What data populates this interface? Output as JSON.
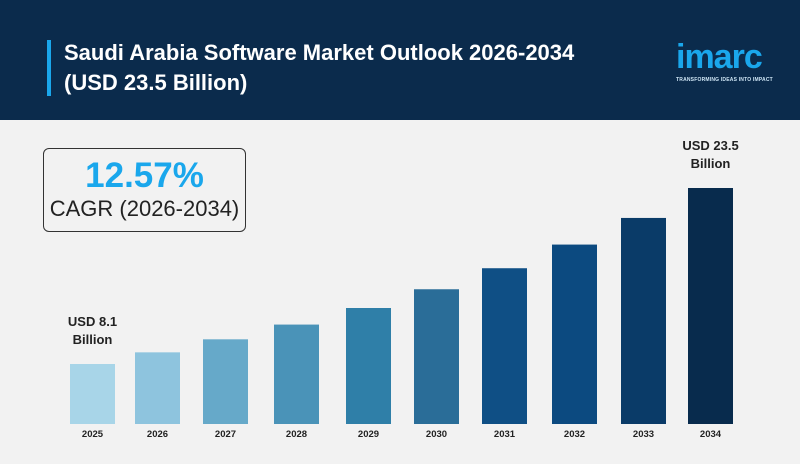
{
  "header": {
    "title_line1": "Saudi Arabia Software Market Outlook 2026-2034",
    "title_line2": "(USD 23.5 Billion)",
    "logo": "imarc",
    "tagline": "TRANSFORMING IDEAS INTO IMPACT"
  },
  "cagr": {
    "value": "12.57%",
    "label": "CAGR (2026-2034)"
  },
  "colors": {
    "header_bg": "#0b2b4c",
    "accent": "#1aa7ec",
    "bars": [
      "#a8d5e8",
      "#8ec4de",
      "#66a9c9",
      "#4a93b8",
      "#2f7fa8",
      "#2a6d98",
      "#0f4f85",
      "#0c4a80",
      "#0a3b68",
      "#082b4d"
    ]
  },
  "chart_data": {
    "type": "bar",
    "title": "",
    "xlabel": "",
    "ylabel": "",
    "categories": [
      "2025",
      "2026",
      "2027",
      "2028",
      "2029",
      "2030",
      "2031",
      "2032",
      "2033",
      "2034"
    ],
    "values": [
      8.1,
      9.12,
      10.26,
      11.55,
      13.0,
      14.64,
      16.48,
      18.55,
      20.88,
      23.5
    ],
    "unit": "USD Billion",
    "annotations": [
      {
        "category": "2025",
        "line1": "USD 8.1",
        "line2": "Billion"
      },
      {
        "category": "2034",
        "line1": "USD 23.5",
        "line2": "Billion"
      }
    ],
    "grid": false
  }
}
